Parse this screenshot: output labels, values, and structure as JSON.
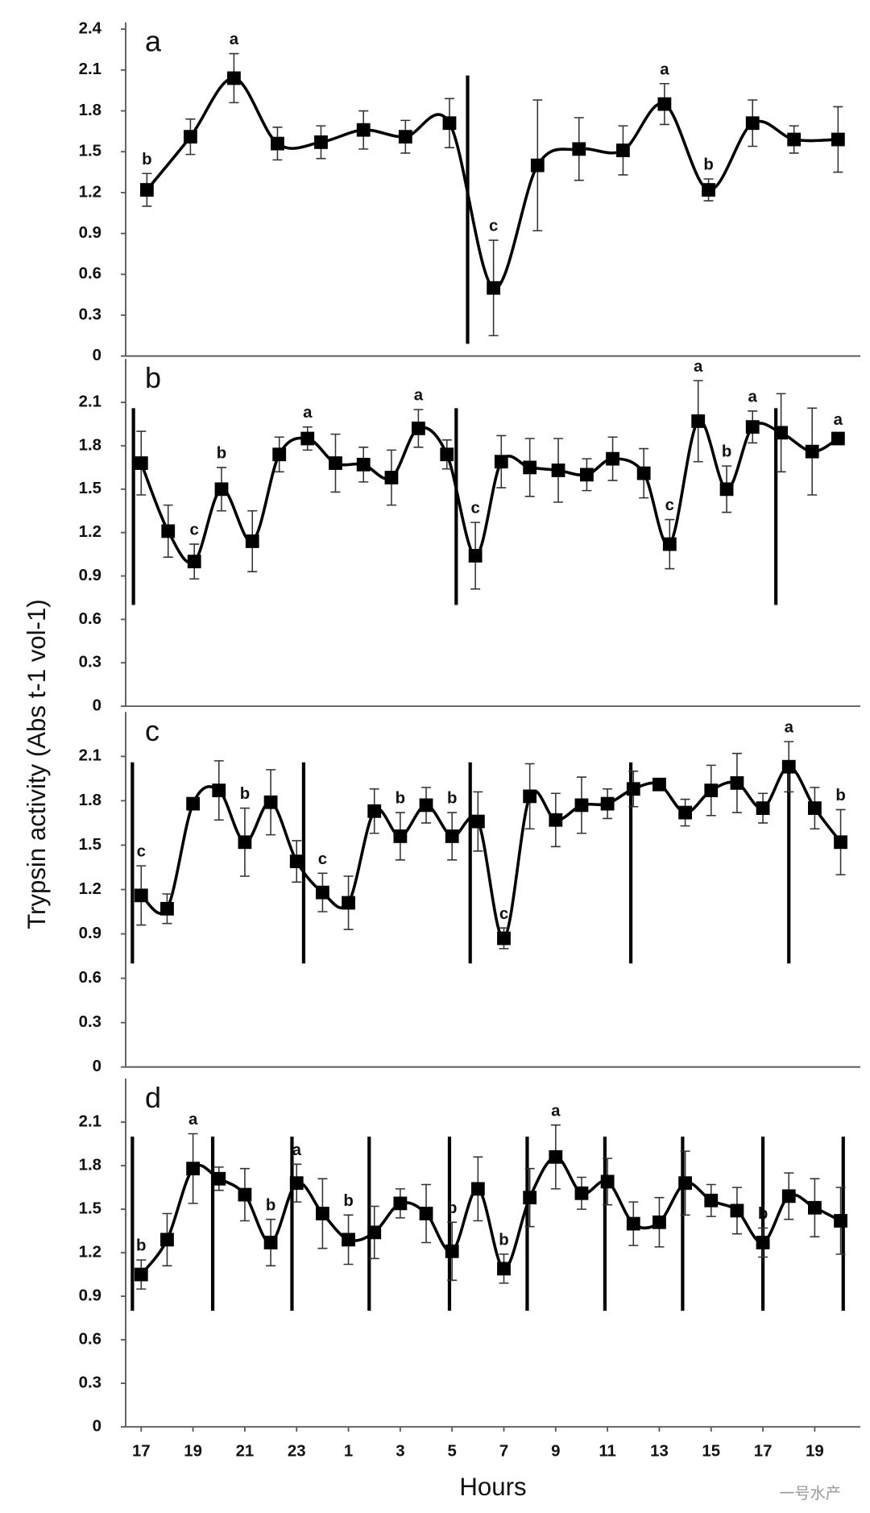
{
  "ylabel": "Trypsin activity (Abs t-1 vol-1)",
  "watermark": "一号水产",
  "chart_data": [
    {
      "type": "line",
      "title": "a",
      "color": "#000000",
      "x": [
        0.22,
        1.9,
        3.58,
        5.26,
        6.94,
        8.58,
        10.2,
        11.9,
        13.6,
        15.3,
        16.9,
        18.6,
        20.2,
        21.9,
        23.6,
        25.2,
        26.9
      ],
      "values": [
        1.22,
        1.61,
        2.04,
        1.56,
        1.57,
        1.66,
        1.61,
        1.71,
        0.5,
        1.4,
        1.52,
        1.51,
        1.85,
        1.22,
        1.71,
        1.59,
        1.59
      ],
      "errors": [
        0.12,
        0.13,
        0.18,
        0.12,
        0.12,
        0.14,
        0.12,
        0.18,
        0.35,
        0.48,
        0.23,
        0.18,
        0.15,
        0.08,
        0.17,
        0.1,
        0.24
      ],
      "letters": [
        "b",
        null,
        "a",
        null,
        null,
        null,
        null,
        null,
        "c",
        null,
        null,
        null,
        "a",
        "b",
        null,
        null,
        null
      ],
      "vlines": [
        12.6
      ],
      "xlim": [
        -0.6,
        27.76
      ],
      "ylim": [
        0,
        2.45
      ],
      "yticks": [
        0,
        0.3,
        0.6,
        0.9,
        1.2,
        1.5,
        1.8,
        2.1,
        2.4
      ]
    },
    {
      "type": "line",
      "title": "b",
      "color": "#000000",
      "x": [
        0,
        1.04,
        2.05,
        3.1,
        4.29,
        5.33,
        6.42,
        7.5,
        8.58,
        9.66,
        10.7,
        11.8,
        12.9,
        13.9,
        15.0,
        16.1,
        17.2,
        18.2,
        19.4,
        20.4,
        21.5,
        22.6,
        23.6,
        24.7,
        25.9,
        26.9
      ],
      "values": [
        1.68,
        1.21,
        1.0,
        1.5,
        1.14,
        1.74,
        1.85,
        1.68,
        1.67,
        1.58,
        1.92,
        1.74,
        1.04,
        1.69,
        1.65,
        1.63,
        1.6,
        1.71,
        1.61,
        1.12,
        1.97,
        1.5,
        1.93,
        1.89,
        1.76,
        1.85
      ],
      "errors": [
        0.22,
        0.18,
        0.12,
        0.15,
        0.21,
        0.12,
        0.08,
        0.2,
        0.12,
        0.19,
        0.13,
        0.1,
        0.23,
        0.18,
        0.2,
        0.22,
        0.11,
        0.15,
        0.17,
        0.17,
        0.28,
        0.16,
        0.11,
        0.27,
        0.3,
        0.03
      ],
      "letters": [
        null,
        null,
        "c",
        "b",
        null,
        null,
        "a",
        null,
        null,
        null,
        "a",
        null,
        "c",
        null,
        null,
        null,
        null,
        null,
        null,
        "c",
        "a",
        "b",
        "a",
        null,
        null,
        "a"
      ],
      "vlines": [
        -0.3,
        12.16,
        24.5
      ],
      "xlim": [
        -0.6,
        27.76
      ],
      "ylim": [
        0,
        2.4
      ],
      "yticks": [
        0,
        0.3,
        0.6,
        0.9,
        1.2,
        1.5,
        1.8,
        2.1
      ]
    },
    {
      "type": "line",
      "title": "c",
      "color": "#000000",
      "x": [
        0,
        1,
        2,
        3,
        4,
        5,
        6,
        7,
        8,
        9,
        10,
        11,
        12,
        13,
        14,
        15,
        16,
        17,
        18,
        19,
        20,
        21,
        22,
        23,
        24,
        25,
        26,
        27
      ],
      "values": [
        1.16,
        1.07,
        1.78,
        1.87,
        1.52,
        1.79,
        1.39,
        1.18,
        1.11,
        1.73,
        1.56,
        1.77,
        1.56,
        1.66,
        0.87,
        1.83,
        1.67,
        1.77,
        1.78,
        1.88,
        1.91,
        1.72,
        1.87,
        1.92,
        1.75,
        2.03,
        1.75,
        1.52
      ],
      "errors": [
        0.2,
        0.1,
        0.03,
        0.2,
        0.23,
        0.22,
        0.14,
        0.13,
        0.18,
        0.15,
        0.16,
        0.12,
        0.16,
        0.2,
        0.07,
        0.22,
        0.18,
        0.19,
        0.1,
        0.12,
        0.02,
        0.09,
        0.17,
        0.2,
        0.1,
        0.17,
        0.14,
        0.22
      ],
      "letters": [
        "c",
        null,
        null,
        null,
        "b",
        null,
        null,
        "c",
        null,
        null,
        "b",
        null,
        "b",
        null,
        "c",
        null,
        null,
        null,
        null,
        null,
        null,
        null,
        null,
        null,
        null,
        "a",
        null,
        "b"
      ],
      "vlines": [
        -0.34,
        6.27,
        12.7,
        18.9,
        25.0
      ],
      "xlim": [
        -0.6,
        27.76
      ],
      "ylim": [
        0,
        2.4
      ],
      "yticks": [
        0,
        0.3,
        0.6,
        0.9,
        1.2,
        1.5,
        1.8,
        2.1
      ]
    },
    {
      "type": "line",
      "title": "d",
      "color": "#000000",
      "xlabel": "Hours",
      "x": [
        0,
        1,
        2,
        3,
        4,
        5,
        6,
        7,
        8,
        9,
        10,
        11,
        12,
        13,
        14,
        15,
        16,
        17,
        18,
        19,
        20,
        21,
        22,
        23,
        24,
        25,
        26,
        27
      ],
      "values": [
        1.05,
        1.29,
        1.78,
        1.71,
        1.6,
        1.27,
        1.68,
        1.47,
        1.29,
        1.34,
        1.54,
        1.47,
        1.21,
        1.64,
        1.09,
        1.58,
        1.86,
        1.61,
        1.69,
        1.4,
        1.41,
        1.68,
        1.56,
        1.49,
        1.27,
        1.59,
        1.51,
        1.42
      ],
      "errors": [
        0.1,
        0.18,
        0.24,
        0.08,
        0.18,
        0.16,
        0.13,
        0.24,
        0.17,
        0.18,
        0.1,
        0.2,
        0.2,
        0.22,
        0.1,
        0.2,
        0.22,
        0.11,
        0.16,
        0.15,
        0.17,
        0.22,
        0.11,
        0.16,
        0.1,
        0.16,
        0.2,
        0.23
      ],
      "letters": [
        "b",
        null,
        "a",
        null,
        null,
        "b",
        "a",
        null,
        "b",
        null,
        null,
        null,
        "b",
        null,
        "b",
        null,
        "a",
        null,
        null,
        null,
        null,
        null,
        null,
        null,
        "b",
        null,
        null,
        null
      ],
      "vlines": [
        -0.34,
        2.76,
        5.82,
        8.8,
        11.9,
        14.9,
        17.9,
        20.9,
        24.0,
        27.1
      ],
      "xlim": [
        -0.6,
        27.76
      ],
      "ylim": [
        0,
        2.4
      ],
      "yticks": [
        0,
        0.3,
        0.6,
        0.9,
        1.2,
        1.5,
        1.8,
        2.1
      ],
      "xticks": [
        {
          "value": 0,
          "label": "17"
        },
        {
          "value": 2,
          "label": "19"
        },
        {
          "value": 4,
          "label": "21"
        },
        {
          "value": 6,
          "label": "23"
        },
        {
          "value": 8,
          "label": "1"
        },
        {
          "value": 10,
          "label": "3"
        },
        {
          "value": 12,
          "label": "5"
        },
        {
          "value": 14,
          "label": "7"
        },
        {
          "value": 16,
          "label": "9"
        },
        {
          "value": 18,
          "label": "11"
        },
        {
          "value": 20,
          "label": "13"
        },
        {
          "value": 22,
          "label": "15"
        },
        {
          "value": 24,
          "label": "17"
        },
        {
          "value": 26,
          "label": "19"
        }
      ]
    }
  ]
}
